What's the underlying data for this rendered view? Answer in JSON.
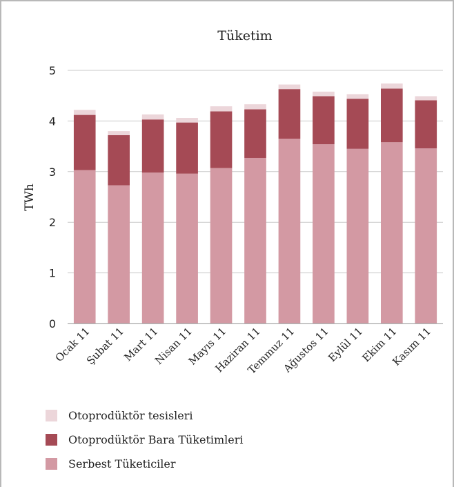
{
  "chart_data": {
    "type": "bar",
    "stacked": true,
    "title": "Tüketim",
    "xlabel": "",
    "ylabel": "TWh",
    "ylim": [
      0,
      5
    ],
    "yticks": [
      0,
      1,
      2,
      3,
      4,
      5
    ],
    "grid": true,
    "legend_position": "bottom",
    "categories": [
      "Ocak 11",
      "Şubat 11",
      "Mart 11",
      "Nisan 11",
      "Mayıs 11",
      "Haziran 11",
      "Temmuz 11",
      "Ağustos 11",
      "Eylül 11",
      "Ekim 11",
      "Kasım 11"
    ],
    "series": [
      {
        "name": "Serbest Tüketiciler",
        "color": "#d399a3",
        "values": [
          3.03,
          2.73,
          2.98,
          2.96,
          3.07,
          3.27,
          3.65,
          3.54,
          3.45,
          3.58,
          3.46
        ]
      },
      {
        "name": "Otoprodüktör Bara Tüketimleri",
        "color": "#a54a55",
        "values": [
          1.09,
          0.99,
          1.05,
          1.01,
          1.12,
          0.96,
          0.98,
          0.95,
          0.99,
          1.06,
          0.95
        ]
      },
      {
        "name": "Otoprodüktör tesisleri",
        "color": "#ecd6da",
        "values": [
          0.1,
          0.08,
          0.1,
          0.09,
          0.1,
          0.1,
          0.09,
          0.09,
          0.09,
          0.1,
          0.08
        ]
      }
    ]
  }
}
